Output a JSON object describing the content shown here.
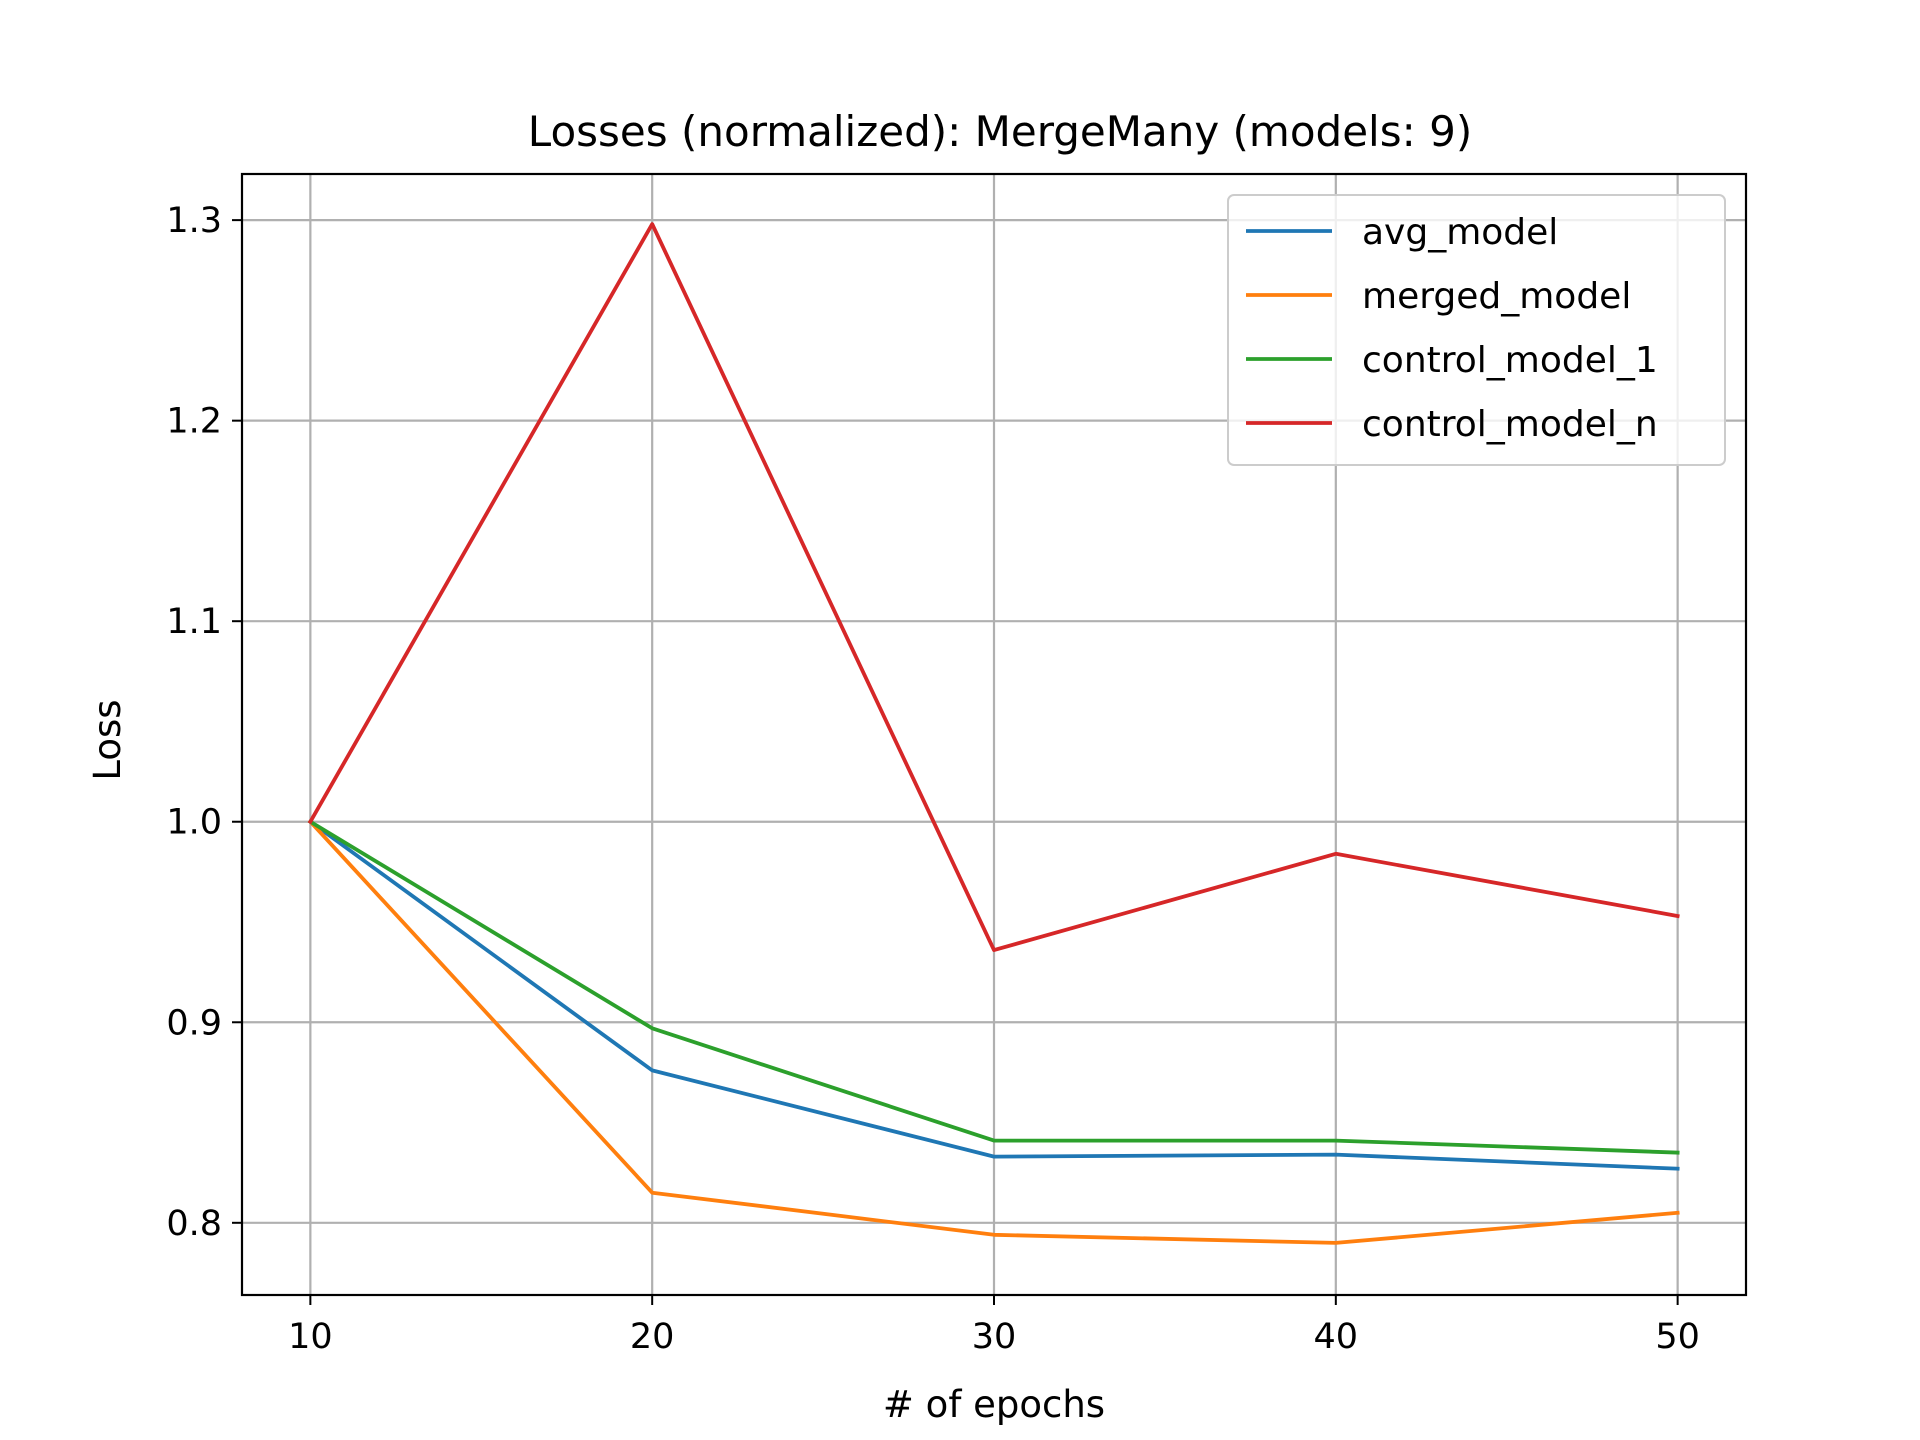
{
  "chart_data": {
    "type": "line",
    "title": "Losses (normalized): MergeMany (models: 9)",
    "xlabel": "# of epochs",
    "ylabel": "Loss",
    "x": [
      10,
      20,
      30,
      40,
      50
    ],
    "xticks": [
      "10",
      "20",
      "30",
      "40",
      "50"
    ],
    "yticks": [
      "0.8",
      "0.9",
      "1.0",
      "1.1",
      "1.2",
      "1.3"
    ],
    "xlim": [
      8,
      52
    ],
    "ylim": [
      0.764,
      1.323
    ],
    "grid": true,
    "legend_position": "top-right",
    "series": [
      {
        "name": "avg_model",
        "color": "#1f77b4",
        "values": [
          1.0,
          0.876,
          0.833,
          0.834,
          0.827
        ]
      },
      {
        "name": "merged_model",
        "color": "#ff7f0e",
        "values": [
          1.0,
          0.815,
          0.794,
          0.79,
          0.805
        ]
      },
      {
        "name": "control_model_1",
        "color": "#2ca02c",
        "values": [
          1.0,
          0.897,
          0.841,
          0.841,
          0.835
        ]
      },
      {
        "name": "control_model_n",
        "color": "#d62728",
        "values": [
          1.0,
          1.298,
          0.936,
          0.984,
          0.953
        ]
      }
    ]
  }
}
